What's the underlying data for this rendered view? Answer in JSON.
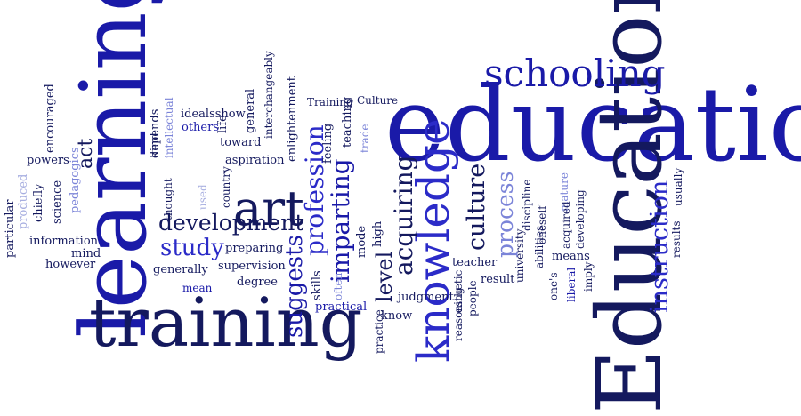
{
  "colors": {
    "navy": "#14195e",
    "blue": "#1a1aa8",
    "royal": "#2b2bc8",
    "light": "#7b84d8",
    "pale": "#a7aee0",
    "background": "#ffffff"
  },
  "words": [
    "education",
    "Education",
    "learning",
    "training",
    "schooling",
    "knowledge",
    "art",
    "development",
    "instruction",
    "culture",
    "process",
    "acquiring",
    "imparting",
    "profession",
    "study",
    "suggests",
    "level",
    "act",
    "preparing",
    "supervision",
    "degree",
    "generally",
    "mean",
    "information",
    "however",
    "mind",
    "powers",
    "idealsshow",
    "others",
    "toward",
    "aspiration",
    "practical",
    "know",
    "judgment",
    "teacher",
    "result",
    "means",
    "Culture",
    "Training",
    "particular",
    "produced",
    "chiefly",
    "science",
    "pedagogics",
    "encouraged",
    "depends",
    "kind",
    "life",
    "intellectual",
    "thought",
    "used",
    "general",
    "interchangeably",
    "enlightenment",
    "country",
    "feeling",
    "teaching",
    "trade",
    "mode",
    "high",
    "skills",
    "often",
    "practice",
    "reasoning",
    "esthetic",
    "people",
    "university",
    "discipline",
    "oneself",
    "mature",
    "abilities",
    "acquired",
    "developing",
    "one's",
    "liberal",
    "imply",
    "results",
    "usually"
  ]
}
